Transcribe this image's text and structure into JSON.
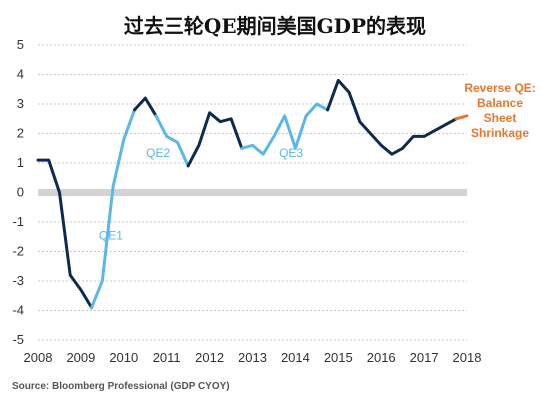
{
  "title": "过去三轮QE期间美国GDP的表现",
  "source": "Source: Bloomberg Professional (GDP CYOY)",
  "colors": {
    "dark": "#0d2b4f",
    "light": "#5bb8e6",
    "orange": "#e8772e",
    "zero_band": "#d3d3d3",
    "grid": "#c8c8c8"
  },
  "chart_data": {
    "type": "line",
    "x_ticks": [
      "2008",
      "2009",
      "2010",
      "2011",
      "2012",
      "2013",
      "2014",
      "2015",
      "2016",
      "2017",
      "2018"
    ],
    "y_ticks": [
      "5",
      "4",
      "3",
      "2",
      "1",
      "0",
      "-1",
      "-2",
      "-3",
      "-4",
      "-5"
    ],
    "xlim": [
      2008,
      2018
    ],
    "ylim": [
      -5,
      5
    ],
    "grid": "horizontal dashed",
    "segments": [
      {
        "style": "dark",
        "points": [
          [
            2008.0,
            1.1
          ],
          [
            2008.25,
            1.1
          ],
          [
            2008.5,
            0.0
          ],
          [
            2008.75,
            -2.8
          ],
          [
            2009.0,
            -3.3
          ],
          [
            2009.25,
            -3.9
          ]
        ]
      },
      {
        "style": "light",
        "label": "QE1",
        "points": [
          [
            2009.25,
            -3.9
          ],
          [
            2009.5,
            -3.0
          ],
          [
            2009.75,
            0.2
          ],
          [
            2010.0,
            1.8
          ],
          [
            2010.25,
            2.8
          ]
        ]
      },
      {
        "style": "dark",
        "points": [
          [
            2010.25,
            2.8
          ],
          [
            2010.5,
            3.2
          ],
          [
            2010.75,
            2.6
          ]
        ]
      },
      {
        "style": "light",
        "label": "QE2",
        "points": [
          [
            2010.75,
            2.6
          ],
          [
            2011.0,
            1.9
          ],
          [
            2011.25,
            1.7
          ],
          [
            2011.5,
            0.9
          ]
        ]
      },
      {
        "style": "dark",
        "points": [
          [
            2011.5,
            0.9
          ],
          [
            2011.75,
            1.6
          ],
          [
            2012.0,
            2.7
          ],
          [
            2012.25,
            2.4
          ],
          [
            2012.5,
            2.5
          ],
          [
            2012.75,
            1.5
          ]
        ]
      },
      {
        "style": "light",
        "label": "QE3",
        "points": [
          [
            2012.75,
            1.5
          ],
          [
            2013.0,
            1.6
          ],
          [
            2013.25,
            1.3
          ],
          [
            2013.5,
            1.9
          ],
          [
            2013.75,
            2.6
          ],
          [
            2014.0,
            1.5
          ],
          [
            2014.25,
            2.6
          ],
          [
            2014.5,
            3.0
          ],
          [
            2014.75,
            2.8
          ]
        ]
      },
      {
        "style": "dark",
        "points": [
          [
            2014.75,
            2.8
          ],
          [
            2015.0,
            3.8
          ],
          [
            2015.25,
            3.4
          ],
          [
            2015.5,
            2.4
          ],
          [
            2015.75,
            2.0
          ],
          [
            2016.0,
            1.6
          ],
          [
            2016.25,
            1.3
          ],
          [
            2016.5,
            1.5
          ],
          [
            2016.75,
            1.9
          ],
          [
            2017.0,
            1.9
          ],
          [
            2017.25,
            2.1
          ],
          [
            2017.5,
            2.3
          ],
          [
            2017.75,
            2.5
          ]
        ]
      },
      {
        "style": "orange",
        "points": [
          [
            2017.75,
            2.5
          ],
          [
            2018.0,
            2.6
          ]
        ]
      }
    ],
    "series_labels": [
      {
        "text": "QE1",
        "x": 2009.7,
        "y": -1.6,
        "style": "light"
      },
      {
        "text": "QE2",
        "x": 2010.8,
        "y": 1.2,
        "style": "light"
      },
      {
        "text": "QE3",
        "x": 2013.9,
        "y": 1.2,
        "style": "light"
      }
    ],
    "annotation": {
      "lines": [
        "Reverse QE:",
        "Balance",
        "Sheet",
        "Shrinkage"
      ],
      "color": "orange"
    }
  }
}
